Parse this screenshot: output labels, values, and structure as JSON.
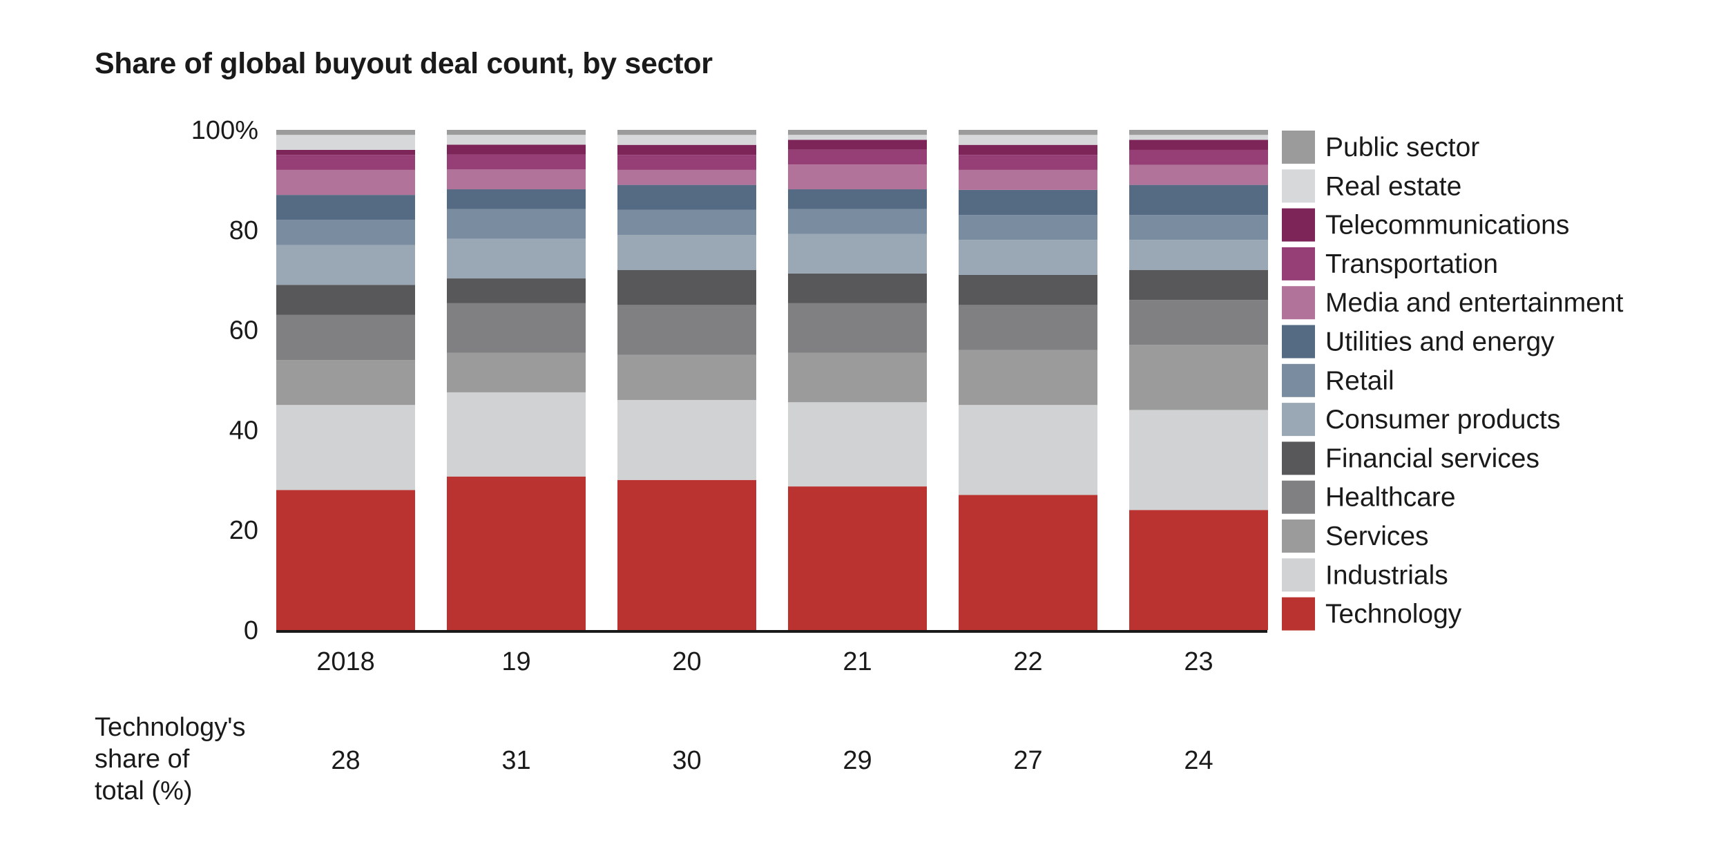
{
  "chart_data": {
    "type": "bar",
    "stacked": true,
    "title": "Share of global buyout deal count, by sector",
    "categories": [
      "2018",
      "19",
      "20",
      "21",
      "22",
      "23"
    ],
    "y_tick_labels": [
      "0",
      "20",
      "40",
      "60",
      "80",
      "100%"
    ],
    "ylim": [
      0,
      100
    ],
    "legend_position": "right",
    "series": [
      {
        "name": "Technology",
        "color": "#bb3330",
        "values": [
          28,
          31,
          30,
          29,
          27,
          24
        ]
      },
      {
        "name": "Industrials",
        "color": "#d0d2d3",
        "values": [
          17,
          17,
          16,
          17,
          18,
          20
        ]
      },
      {
        "name": "Services",
        "color": "#9b9b9b",
        "values": [
          9,
          8,
          9,
          10,
          11,
          13
        ]
      },
      {
        "name": "Healthcare",
        "color": "#808083",
        "values": [
          9,
          10,
          10,
          10,
          9,
          9
        ]
      },
      {
        "name": "Financial services",
        "color": "#58585a",
        "values": [
          6,
          5,
          7,
          6,
          6,
          6
        ]
      },
      {
        "name": "Consumer products",
        "color": "#9aa8b6",
        "values": [
          8,
          8,
          7,
          8,
          7,
          6
        ]
      },
      {
        "name": "Retail",
        "color": "#7a8ca0",
        "values": [
          5,
          6,
          5,
          5,
          5,
          5
        ]
      },
      {
        "name": "Utilities and energy",
        "color": "#556b84",
        "values": [
          5,
          4,
          5,
          4,
          5,
          6
        ]
      },
      {
        "name": "Media and entertainment",
        "color": "#b2739b",
        "values": [
          5,
          4,
          3,
          5,
          4,
          4
        ]
      },
      {
        "name": "Transportation",
        "color": "#963f77",
        "values": [
          3,
          3,
          3,
          3,
          3,
          3
        ]
      },
      {
        "name": "Telecommunications",
        "color": "#7d2458",
        "values": [
          1,
          2,
          2,
          2,
          2,
          2
        ]
      },
      {
        "name": "Real estate",
        "color": "#d6d8d9",
        "values": [
          3,
          2,
          2,
          1,
          2,
          1
        ]
      },
      {
        "name": "Public sector",
        "color": "#9b9b9b",
        "values": [
          1,
          1,
          1,
          1,
          1,
          1
        ]
      }
    ],
    "technology_share": {
      "label_lines": [
        "Technology's",
        "share of",
        "total (%)"
      ],
      "values": [
        "28",
        "31",
        "30",
        "29",
        "27",
        "24"
      ]
    }
  }
}
